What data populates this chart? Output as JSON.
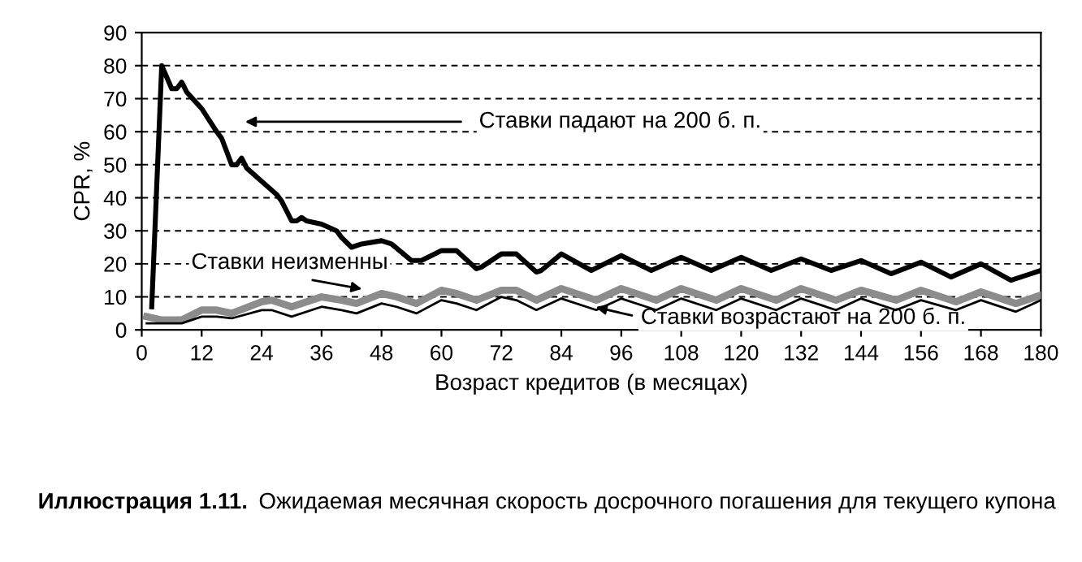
{
  "chart_data": {
    "type": "line",
    "xlabel": "Возраст кредитов (в месяцах)",
    "ylabel": "CPR, %",
    "xlim": [
      0,
      180
    ],
    "ylim": [
      0,
      90
    ],
    "xticks": [
      0,
      12,
      24,
      36,
      48,
      60,
      72,
      84,
      96,
      108,
      120,
      132,
      144,
      156,
      168,
      180
    ],
    "yticks": [
      0,
      10,
      20,
      30,
      40,
      50,
      60,
      70,
      80,
      90
    ],
    "grid": "y",
    "line_style": "solid",
    "series": [
      {
        "color": "#000000",
        "x": [
          2,
          4,
          6,
          7,
          8,
          9,
          12,
          15,
          16,
          18,
          19,
          20,
          21,
          24,
          27,
          28,
          30,
          31,
          32,
          33,
          36,
          39,
          40,
          42,
          44,
          48,
          50,
          54,
          56,
          60,
          63,
          67,
          68,
          72,
          75,
          79,
          80,
          84,
          90,
          96,
          102,
          108,
          114,
          120,
          126,
          132,
          138,
          144,
          150,
          156,
          162,
          168,
          174,
          180
        ],
        "values": [
          7,
          80,
          73,
          73,
          75,
          72,
          67,
          60,
          58,
          50,
          50,
          52,
          49,
          45,
          41,
          39,
          33,
          33,
          34,
          33,
          32,
          30,
          28,
          25,
          26,
          27,
          26,
          21,
          21,
          24,
          24,
          18.5,
          19,
          23,
          23,
          17.5,
          18,
          23,
          18,
          22.5,
          18,
          22,
          18,
          22,
          18,
          21.5,
          18,
          21,
          17,
          20.5,
          16,
          20,
          15,
          18
        ]
      },
      {
        "color": "#8c8c8c",
        "x": [
          1,
          4,
          8,
          12,
          15,
          18,
          24,
          26,
          30,
          36,
          40,
          43,
          48,
          51,
          55,
          60,
          63,
          67,
          72,
          75,
          79,
          84,
          91,
          96,
          103,
          108,
          115,
          120,
          127,
          132,
          139,
          144,
          151,
          156,
          163,
          168,
          175,
          180
        ],
        "values": [
          4,
          3,
          3,
          6,
          6,
          5,
          8.5,
          9,
          7,
          10,
          9,
          8,
          11,
          10,
          8,
          12,
          11,
          9,
          12,
          12,
          9,
          12.5,
          9,
          12.5,
          9,
          12.5,
          9,
          12.5,
          9,
          12.5,
          9,
          12,
          9,
          12,
          8.5,
          11.5,
          8,
          10.5
        ]
      },
      {
        "color": "#000000",
        "x": [
          1,
          8,
          12,
          15,
          18,
          24,
          26,
          30,
          36,
          40,
          43,
          48,
          51,
          55,
          60,
          63,
          67,
          72,
          75,
          79,
          84,
          91,
          96,
          103,
          108,
          115,
          120,
          127,
          132,
          139,
          144,
          151,
          156,
          163,
          168,
          175,
          180
        ],
        "values": [
          2,
          2,
          4,
          4,
          3.5,
          6,
          6,
          4,
          7,
          6,
          5,
          8,
          7,
          5,
          9,
          8,
          6,
          10,
          9,
          6,
          9.5,
          6,
          9.5,
          6,
          9.5,
          6,
          9.5,
          6,
          9.5,
          6,
          9.5,
          6,
          9,
          6,
          9,
          5.5,
          9
        ]
      }
    ],
    "annotations": [
      "Ставки падают на 200 б. п.",
      "Ставки неизменны",
      "Ставки возрастают на 200 б. п.",
      "Иллюстрация 1.11.",
      "Ожидаемая месячная скорость досрочного погашения для текущего купона"
    ]
  }
}
